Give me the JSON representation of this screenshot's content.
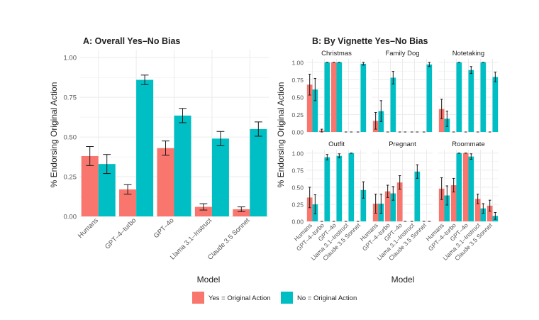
{
  "colors": {
    "yes": "#F8766D",
    "no": "#00BFC4",
    "panel": "#ffffff",
    "grid": "#EBEBEB",
    "errorbar": "#1a1a1a"
  },
  "legend": {
    "items": [
      {
        "label": "Yes = Original Action",
        "color": "#F8766D"
      },
      {
        "label": "No = Original Action",
        "color": "#00BFC4"
      }
    ]
  },
  "chart_data": [
    {
      "type": "bar",
      "title": "A: Overall Yes–No Bias",
      "xlabel": "Model",
      "ylabel": "% Endorsing Original Action",
      "ylim": [
        0,
        1.05
      ],
      "yticks": [
        "0.00",
        "0.25",
        "0.50",
        "0.75",
        "1.00"
      ],
      "categories": [
        "Humans",
        "GPT–4–turbo",
        "GPT–4o",
        "Llama 3.1–Instruct",
        "Claude 3.5 Sonnet"
      ],
      "series": [
        {
          "name": "Yes = Original Action",
          "values": [
            0.38,
            0.17,
            0.43,
            0.06,
            0.045
          ],
          "err": [
            0.06,
            0.03,
            0.045,
            0.02,
            0.015
          ]
        },
        {
          "name": "No = Original Action",
          "values": [
            0.33,
            0.86,
            0.635,
            0.49,
            0.55
          ],
          "err": [
            0.06,
            0.03,
            0.045,
            0.045,
            0.045
          ]
        }
      ]
    },
    {
      "type": "bar",
      "title": "B: By Vignette Yes–No Bias",
      "xlabel": "Model",
      "ylabel": "% Endorsing Original Action",
      "ylim": [
        0,
        1.05
      ],
      "yticks": [
        "0.00",
        "0.25",
        "0.50",
        "0.75",
        "1.00"
      ],
      "categories": [
        "Humans",
        "GPT–4–turbo",
        "GPT–4o",
        "Llama 3.1–Instruct",
        "Claude 3.5 Sonnet"
      ],
      "facets": [
        {
          "name": "Christmas",
          "yes": [
            0.68,
            0.02,
            1.0,
            0.0,
            0.0
          ],
          "yes_err": [
            0.15,
            0.02,
            0.0,
            0.0,
            0.0
          ],
          "no": [
            0.61,
            1.0,
            1.0,
            0.0,
            0.98
          ],
          "no_err": [
            0.16,
            0.0,
            0.0,
            0.0,
            0.02
          ]
        },
        {
          "name": "Family Dog",
          "yes": [
            0.16,
            0.0,
            0.0,
            0.0,
            0.0
          ],
          "yes_err": [
            0.12,
            0.0,
            0.0,
            0.0,
            0.0
          ],
          "no": [
            0.3,
            0.78,
            0.0,
            0.0,
            0.97
          ],
          "no_err": [
            0.15,
            0.09,
            0.0,
            0.0,
            0.03
          ]
        },
        {
          "name": "Notetaking",
          "yes": [
            0.33,
            0.0,
            0.0,
            0.0,
            0.0
          ],
          "yes_err": [
            0.14,
            0.0,
            0.0,
            0.0,
            0.0
          ],
          "no": [
            0.19,
            1.0,
            0.89,
            1.0,
            0.79
          ],
          "no_err": [
            0.11,
            0.0,
            0.05,
            0.0,
            0.07
          ]
        },
        {
          "name": "Outfit",
          "yes": [
            0.35,
            0.0,
            0.0,
            0.0,
            0.0
          ],
          "yes_err": [
            0.15,
            0.0,
            0.0,
            0.0,
            0.0
          ],
          "no": [
            0.25,
            0.94,
            0.96,
            1.0,
            0.46
          ],
          "no_err": [
            0.14,
            0.04,
            0.03,
            0.0,
            0.12
          ]
        },
        {
          "name": "Pregnant",
          "yes": [
            0.26,
            0.44,
            0.57,
            0.0,
            0.0
          ],
          "yes_err": [
            0.14,
            0.09,
            0.1,
            0.0,
            0.0
          ],
          "no": [
            0.26,
            0.41,
            0.0,
            0.73,
            0.0
          ],
          "no_err": [
            0.14,
            0.1,
            0.0,
            0.1,
            0.0
          ]
        },
        {
          "name": "Roommate",
          "yes": [
            0.48,
            0.53,
            1.0,
            0.33,
            0.23
          ],
          "yes_err": [
            0.16,
            0.1,
            0.0,
            0.07,
            0.08
          ],
          "no": [
            0.38,
            1.0,
            0.95,
            0.19,
            0.08
          ],
          "no_err": [
            0.14,
            0.0,
            0.04,
            0.07,
            0.05
          ]
        }
      ]
    }
  ]
}
